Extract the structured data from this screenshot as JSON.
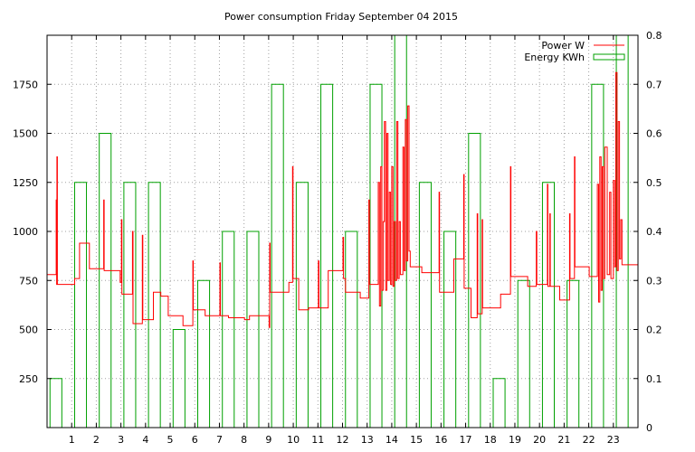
{
  "chart_data": {
    "type": "line",
    "title": "Power consumption Friday September 04 2015",
    "x": {
      "range": [
        0,
        24
      ],
      "ticks": [
        1,
        2,
        3,
        4,
        5,
        6,
        7,
        8,
        9,
        10,
        11,
        12,
        13,
        14,
        15,
        16,
        17,
        18,
        19,
        20,
        21,
        22,
        23
      ]
    },
    "y_left": {
      "range": [
        0,
        2000
      ],
      "ticks": [
        250,
        500,
        750,
        1000,
        1250,
        1500,
        1750
      ]
    },
    "y_right": {
      "range": [
        0,
        0.8
      ],
      "ticks": [
        "0",
        "0.1",
        "0.2",
        "0.3",
        "0.4",
        "0.5",
        "0.6",
        "0.7",
        "0.8"
      ]
    },
    "grid": true,
    "legend_position": "top-right",
    "series": [
      {
        "name": "Power W",
        "style": "step-line",
        "axis": "left",
        "color": "#ff0000",
        "points": [
          [
            0.0,
            780
          ],
          [
            0.35,
            780
          ],
          [
            0.37,
            1160
          ],
          [
            0.39,
            730
          ],
          [
            0.4,
            1380
          ],
          [
            0.42,
            730
          ],
          [
            1.1,
            730
          ],
          [
            1.12,
            760
          ],
          [
            1.3,
            760
          ],
          [
            1.32,
            940
          ],
          [
            1.7,
            940
          ],
          [
            1.72,
            810
          ],
          [
            2.28,
            810
          ],
          [
            2.3,
            1160
          ],
          [
            2.32,
            800
          ],
          [
            2.95,
            800
          ],
          [
            2.97,
            740
          ],
          [
            3.02,
            1060
          ],
          [
            3.04,
            680
          ],
          [
            3.45,
            680
          ],
          [
            3.47,
            1000
          ],
          [
            3.49,
            530
          ],
          [
            3.85,
            530
          ],
          [
            3.87,
            980
          ],
          [
            3.89,
            550
          ],
          [
            4.3,
            550
          ],
          [
            4.32,
            690
          ],
          [
            4.6,
            690
          ],
          [
            4.62,
            670
          ],
          [
            4.9,
            670
          ],
          [
            4.92,
            570
          ],
          [
            5.5,
            570
          ],
          [
            5.52,
            520
          ],
          [
            5.9,
            520
          ],
          [
            5.92,
            850
          ],
          [
            5.94,
            600
          ],
          [
            6.4,
            600
          ],
          [
            6.42,
            570
          ],
          [
            7.0,
            570
          ],
          [
            7.02,
            840
          ],
          [
            7.04,
            570
          ],
          [
            7.35,
            570
          ],
          [
            7.37,
            560
          ],
          [
            8.0,
            560
          ],
          [
            8.02,
            550
          ],
          [
            8.2,
            550
          ],
          [
            8.22,
            570
          ],
          [
            9.0,
            570
          ],
          [
            9.02,
            510
          ],
          [
            9.04,
            940
          ],
          [
            9.06,
            690
          ],
          [
            9.8,
            690
          ],
          [
            9.82,
            740
          ],
          [
            9.95,
            740
          ],
          [
            9.97,
            1330
          ],
          [
            9.99,
            760
          ],
          [
            10.2,
            760
          ],
          [
            10.22,
            600
          ],
          [
            10.6,
            600
          ],
          [
            10.62,
            610
          ],
          [
            11.0,
            610
          ],
          [
            11.02,
            850
          ],
          [
            11.04,
            610
          ],
          [
            11.4,
            610
          ],
          [
            11.42,
            800
          ],
          [
            12.0,
            800
          ],
          [
            12.02,
            970
          ],
          [
            12.04,
            760
          ],
          [
            12.1,
            760
          ],
          [
            12.12,
            690
          ],
          [
            12.7,
            690
          ],
          [
            12.72,
            660
          ],
          [
            13.05,
            660
          ],
          [
            13.07,
            1160
          ],
          [
            13.09,
            730
          ],
          [
            13.4,
            730
          ],
          [
            13.45,
            1250
          ],
          [
            13.5,
            620
          ],
          [
            13.55,
            1330
          ],
          [
            13.6,
            700
          ],
          [
            13.65,
            1050
          ],
          [
            13.7,
            1560
          ],
          [
            13.75,
            700
          ],
          [
            13.8,
            1500
          ],
          [
            13.85,
            750
          ],
          [
            13.9,
            1200
          ],
          [
            13.95,
            730
          ],
          [
            14.0,
            1330
          ],
          [
            14.05,
            720
          ],
          [
            14.1,
            1050
          ],
          [
            14.15,
            750
          ],
          [
            14.2,
            1560
          ],
          [
            14.25,
            760
          ],
          [
            14.3,
            1050
          ],
          [
            14.35,
            780
          ],
          [
            14.45,
            1430
          ],
          [
            14.5,
            800
          ],
          [
            14.55,
            1570
          ],
          [
            14.6,
            850
          ],
          [
            14.65,
            1640
          ],
          [
            14.7,
            900
          ],
          [
            14.75,
            820
          ],
          [
            15.2,
            820
          ],
          [
            15.22,
            790
          ],
          [
            15.9,
            790
          ],
          [
            15.92,
            1200
          ],
          [
            15.94,
            690
          ],
          [
            16.5,
            690
          ],
          [
            16.52,
            860
          ],
          [
            16.9,
            860
          ],
          [
            16.92,
            1290
          ],
          [
            16.94,
            710
          ],
          [
            17.2,
            710
          ],
          [
            17.22,
            560
          ],
          [
            17.45,
            560
          ],
          [
            17.47,
            1090
          ],
          [
            17.49,
            580
          ],
          [
            17.65,
            580
          ],
          [
            17.67,
            1060
          ],
          [
            17.69,
            610
          ],
          [
            18.4,
            610
          ],
          [
            18.42,
            680
          ],
          [
            18.8,
            680
          ],
          [
            18.82,
            1330
          ],
          [
            18.84,
            770
          ],
          [
            19.5,
            770
          ],
          [
            19.52,
            720
          ],
          [
            19.85,
            720
          ],
          [
            19.87,
            1000
          ],
          [
            19.89,
            730
          ],
          [
            20.3,
            730
          ],
          [
            20.32,
            1240
          ],
          [
            20.34,
            720
          ],
          [
            20.4,
            720
          ],
          [
            20.42,
            1090
          ],
          [
            20.44,
            720
          ],
          [
            20.8,
            720
          ],
          [
            20.82,
            650
          ],
          [
            21.2,
            650
          ],
          [
            21.22,
            1090
          ],
          [
            21.24,
            760
          ],
          [
            21.4,
            760
          ],
          [
            21.42,
            1380
          ],
          [
            21.44,
            820
          ],
          [
            22.0,
            820
          ],
          [
            22.02,
            770
          ],
          [
            22.3,
            770
          ],
          [
            22.35,
            1240
          ],
          [
            22.4,
            640
          ],
          [
            22.45,
            1380
          ],
          [
            22.5,
            700
          ],
          [
            22.55,
            1330
          ],
          [
            22.6,
            760
          ],
          [
            22.65,
            1430
          ],
          [
            22.75,
            780
          ],
          [
            22.85,
            1200
          ],
          [
            22.9,
            760
          ],
          [
            23.0,
            1260
          ],
          [
            23.05,
            820
          ],
          [
            23.1,
            1810
          ],
          [
            23.15,
            800
          ],
          [
            23.2,
            1560
          ],
          [
            23.25,
            860
          ],
          [
            23.3,
            1060
          ],
          [
            23.35,
            830
          ],
          [
            24.0,
            830
          ]
        ]
      },
      {
        "name": "Energy KWh",
        "style": "hourly-bars",
        "axis": "right",
        "color": "#00a000",
        "hours": [
          0,
          1,
          2,
          3,
          4,
          5,
          6,
          7,
          8,
          9,
          10,
          11,
          12,
          13,
          14,
          15,
          16,
          17,
          18,
          19,
          20,
          21,
          22,
          23
        ],
        "values": [
          0.1,
          0.5,
          0.6,
          0.5,
          0.5,
          0.2,
          0.3,
          0.4,
          0.4,
          0.7,
          0.5,
          0.7,
          0.4,
          0.7,
          0.8,
          0.5,
          0.4,
          0.6,
          0.1,
          0.3,
          0.5,
          0.3,
          0.7,
          0.8
        ]
      }
    ]
  }
}
